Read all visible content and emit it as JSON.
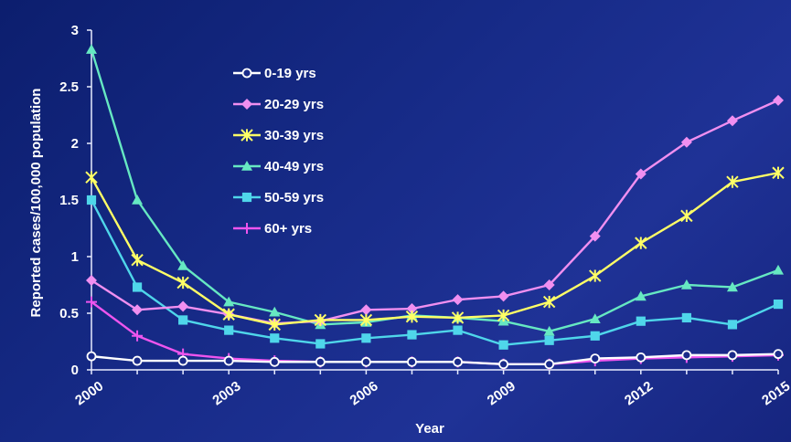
{
  "chart_data": {
    "type": "line",
    "title": "",
    "xlabel": "Year",
    "ylabel": "Reported cases/100,000 population",
    "x": [
      2000,
      2001,
      2002,
      2003,
      2004,
      2005,
      2006,
      2007,
      2008,
      2009,
      2010,
      2011,
      2012,
      2013,
      2014,
      2015
    ],
    "x_ticks": [
      "2000",
      "2003",
      "2006",
      "2009",
      "2012",
      "2015"
    ],
    "y_ticks": [
      "0",
      "0.5",
      "1",
      "1.5",
      "2",
      "2.5",
      "3"
    ],
    "ylim": [
      0,
      3
    ],
    "xlim": [
      2000,
      2015
    ],
    "grid": false,
    "legend_position": "top-left",
    "series": [
      {
        "name": "0-19 yrs",
        "color": "#ffffff",
        "marker": "open-circle",
        "values": [
          0.12,
          0.08,
          0.08,
          0.08,
          0.07,
          0.07,
          0.07,
          0.07,
          0.07,
          0.05,
          0.05,
          0.1,
          0.11,
          0.13,
          0.13,
          0.14
        ]
      },
      {
        "name": "20-29 yrs",
        "color": "#f08ff0",
        "marker": "diamond",
        "values": [
          0.79,
          0.53,
          0.56,
          0.49,
          0.41,
          0.43,
          0.53,
          0.54,
          0.62,
          0.65,
          0.75,
          1.18,
          1.73,
          2.01,
          2.2,
          2.38
        ]
      },
      {
        "name": "30-39 yrs",
        "color": "#ffff66",
        "marker": "asterisk",
        "values": [
          1.7,
          0.97,
          0.77,
          0.49,
          0.4,
          0.44,
          0.44,
          0.47,
          0.46,
          0.48,
          0.6,
          0.83,
          1.12,
          1.36,
          1.66,
          1.74
        ]
      },
      {
        "name": "40-49 yrs",
        "color": "#66e8c2",
        "marker": "triangle",
        "values": [
          2.83,
          1.5,
          0.92,
          0.6,
          0.51,
          0.4,
          0.42,
          0.48,
          0.46,
          0.43,
          0.34,
          0.45,
          0.65,
          0.75,
          0.73,
          0.88
        ]
      },
      {
        "name": "50-59 yrs",
        "color": "#4fd6ea",
        "marker": "square",
        "values": [
          1.5,
          0.73,
          0.44,
          0.35,
          0.28,
          0.23,
          0.28,
          0.31,
          0.35,
          0.22,
          0.26,
          0.3,
          0.43,
          0.46,
          0.4,
          0.58
        ]
      },
      {
        "name": "60+ yrs",
        "color": "#ee55ee",
        "marker": "cross",
        "values": [
          0.6,
          0.3,
          0.14,
          0.1,
          0.08,
          0.07,
          0.07,
          0.07,
          0.07,
          0.05,
          0.05,
          0.08,
          0.1,
          0.11,
          0.12,
          0.13
        ]
      }
    ]
  }
}
